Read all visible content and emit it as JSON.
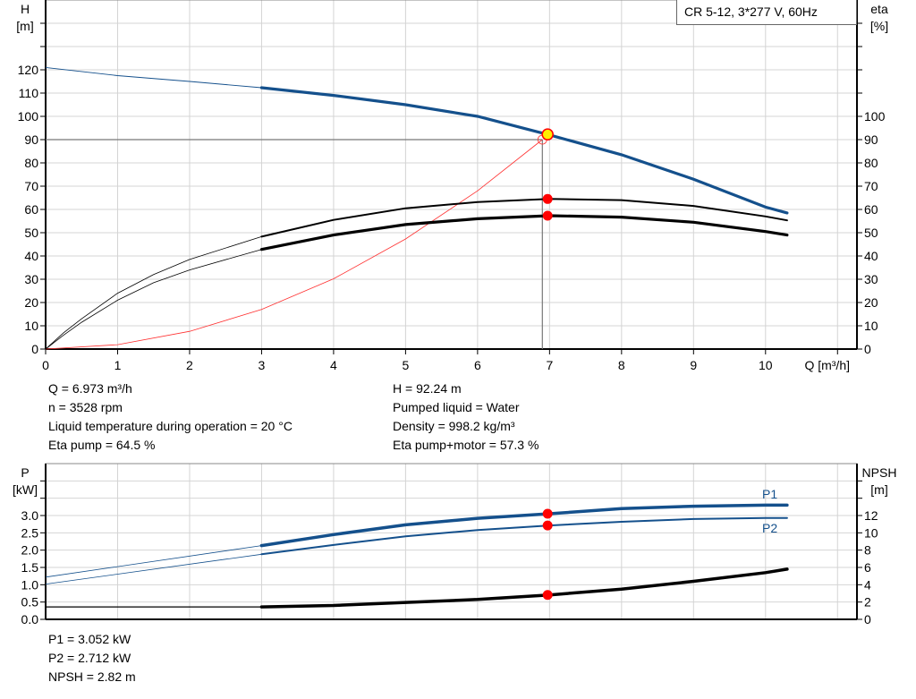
{
  "colors": {
    "head": "#14508c",
    "power": "#14508c",
    "eta": "#000000",
    "npsh": "#000000",
    "system": "#ff3030",
    "duty_point": "#ffee00",
    "marker": "#ff0000",
    "grid": "#d4d4d4"
  },
  "chart_data": [
    {
      "type": "line",
      "title": "CR 5-12, 3*277 V, 60Hz",
      "xlabel": "Q [m³/h]",
      "ylabel_left": [
        "H",
        "[m]"
      ],
      "ylabel_right": [
        "eta",
        "[%]"
      ],
      "xlim": [
        0,
        11.27
      ],
      "ylim_left": [
        0,
        150
      ],
      "ylim_right": [
        0,
        150
      ],
      "x_ticks": [
        "0",
        "1",
        "2",
        "3",
        "4",
        "5",
        "6",
        "7",
        "8",
        "9",
        "10"
      ],
      "y_ticks_left": [
        "0",
        "10",
        "20",
        "30",
        "40",
        "50",
        "60",
        "70",
        "80",
        "90",
        "100",
        "110",
        "120"
      ],
      "y_ticks_right": [
        "0",
        "10",
        "20",
        "30",
        "40",
        "50",
        "60",
        "70",
        "80",
        "90",
        "100"
      ],
      "grid": true,
      "series": [
        {
          "key": "head",
          "axis": "left",
          "x": [
            0,
            1,
            2,
            3,
            4,
            5,
            6,
            7,
            8,
            9,
            10,
            10.3
          ],
          "y": [
            121,
            117.5,
            115,
            112.3,
            109,
            105,
            100,
            92,
            83.5,
            73,
            61,
            58.5
          ]
        },
        {
          "key": "eta_pump",
          "axis": "right",
          "x": [
            0,
            0.25,
            0.5,
            1,
            1.5,
            2,
            3,
            4,
            5,
            6,
            7,
            8,
            9,
            10,
            10.3
          ],
          "y": [
            0,
            7,
            13,
            24,
            32,
            38.5,
            48.3,
            55.5,
            60.5,
            63.2,
            64.5,
            64,
            61.5,
            57,
            55.3
          ]
        },
        {
          "key": "eta_pump_motor",
          "axis": "right",
          "x": [
            0,
            0.25,
            0.5,
            1,
            1.5,
            2,
            3,
            4,
            5,
            6,
            7,
            8,
            9,
            10,
            10.3
          ],
          "y": [
            0,
            6,
            11.5,
            21,
            28.5,
            34,
            42.8,
            49,
            53.5,
            56,
            57.3,
            56.7,
            54.5,
            50.5,
            49
          ]
        },
        {
          "key": "system",
          "axis": "left",
          "x": [
            0,
            1,
            2,
            3,
            4,
            5,
            6,
            6.9
          ],
          "y": [
            0,
            1.9,
            7.6,
            17,
            30.2,
            47.3,
            68,
            90
          ]
        }
      ],
      "duty_point": {
        "q": 6.973,
        "h": 92.24,
        "eta_pump": 64.5,
        "eta_pump_motor": 57.3,
        "system_end": {
          "q": 6.9,
          "h": 90
        }
      }
    },
    {
      "type": "line",
      "ylabel_left": [
        "P",
        "[kW]"
      ],
      "ylabel_right": [
        "NPSH",
        "[m]"
      ],
      "xlim": [
        0,
        11.27
      ],
      "ylim_left": [
        0,
        4.5
      ],
      "ylim_right": [
        0,
        18
      ],
      "y_ticks_left": [
        "0.0",
        "0.5",
        "1.0",
        "1.5",
        "2.0",
        "2.5",
        "3.0"
      ],
      "y_ticks_right": [
        "0",
        "2",
        "4",
        "6",
        "8",
        "10",
        "12"
      ],
      "grid": true,
      "series": [
        {
          "key": "P1",
          "name": "P1",
          "axis": "left",
          "x": [
            0,
            3,
            4,
            5,
            6,
            7,
            8,
            9,
            10,
            10.3
          ],
          "y": [
            1.22,
            2.13,
            2.45,
            2.73,
            2.92,
            3.052,
            3.2,
            3.27,
            3.3,
            3.3
          ]
        },
        {
          "key": "P2",
          "name": "P2",
          "axis": "left",
          "x": [
            0,
            3,
            4,
            5,
            6,
            7,
            8,
            9,
            10,
            10.3
          ],
          "y": [
            1.02,
            1.88,
            2.15,
            2.4,
            2.58,
            2.712,
            2.82,
            2.9,
            2.93,
            2.93
          ]
        },
        {
          "key": "NPSH",
          "axis": "right",
          "x": [
            0,
            3,
            4,
            5,
            6,
            7,
            8,
            9,
            10,
            10.3
          ],
          "y": [
            1.44,
            1.44,
            1.6,
            1.95,
            2.3,
            2.82,
            3.5,
            4.4,
            5.4,
            5.8
          ]
        }
      ],
      "duty_point": {
        "q": 6.973,
        "p1": 3.052,
        "p2": 2.712,
        "npsh": 2.82
      }
    }
  ],
  "info_top_left": [
    "Q = 6.973 m³/h",
    "n = 3528 rpm",
    "Liquid temperature during operation = 20 °C",
    "Eta pump = 64.5 %"
  ],
  "info_top_right": [
    "H = 92.24 m",
    "Pumped liquid = Water",
    "Density = 998.2 kg/m³",
    "Eta pump+motor = 57.3 %"
  ],
  "info_bottom": [
    "P1 = 3.052 kW",
    "P2 = 2.712 kW",
    "NPSH = 2.82 m"
  ]
}
